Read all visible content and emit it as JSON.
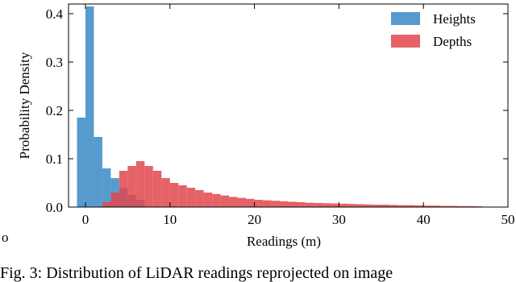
{
  "chart_data": {
    "type": "histogram",
    "xlabel": "Readings (m)",
    "ylabel": "Probability Density",
    "xlim": [
      -2,
      50
    ],
    "ylim": [
      0,
      0.42
    ],
    "xticks": [
      0,
      10,
      20,
      30,
      40,
      50
    ],
    "yticks": [
      {
        "value": 0,
        "label": "0.0"
      },
      0.1,
      0.2,
      0.3,
      0.4
    ],
    "legend": "upper right",
    "series": [
      {
        "name": "Heights",
        "color": "#3a8ac6",
        "bins": [
          -1,
          0,
          1,
          2,
          3,
          4,
          5,
          6,
          7
        ],
        "values": [
          0.185,
          0.415,
          0.145,
          0.08,
          0.06,
          0.04,
          0.025,
          0.015
        ]
      },
      {
        "name": "Depths",
        "color": "#e0474c",
        "bins": [
          2,
          3,
          4,
          5,
          6,
          7,
          8,
          9,
          10,
          11,
          12,
          13,
          14,
          15,
          16,
          17,
          18,
          19,
          20,
          21,
          22,
          23,
          24,
          25,
          26,
          27,
          28,
          29,
          30,
          31,
          32,
          33,
          34,
          35,
          36,
          37,
          38,
          39,
          40,
          41,
          42,
          43,
          44,
          45,
          46,
          47
        ],
        "values": [
          0.01,
          0.03,
          0.075,
          0.085,
          0.095,
          0.085,
          0.075,
          0.06,
          0.05,
          0.045,
          0.04,
          0.035,
          0.03,
          0.027,
          0.024,
          0.021,
          0.019,
          0.017,
          0.015,
          0.014,
          0.013,
          0.012,
          0.011,
          0.01,
          0.009,
          0.0085,
          0.008,
          0.0075,
          0.007,
          0.0065,
          0.006,
          0.0055,
          0.005,
          0.005,
          0.0045,
          0.004,
          0.004,
          0.0035,
          0.003,
          0.003,
          0.0025,
          0.0025,
          0.002,
          0.002,
          0.0015
        ]
      }
    ],
    "stray_mark": "o",
    "caption": "Fig. 3: Distribution of LiDAR readings reprojected on image"
  }
}
